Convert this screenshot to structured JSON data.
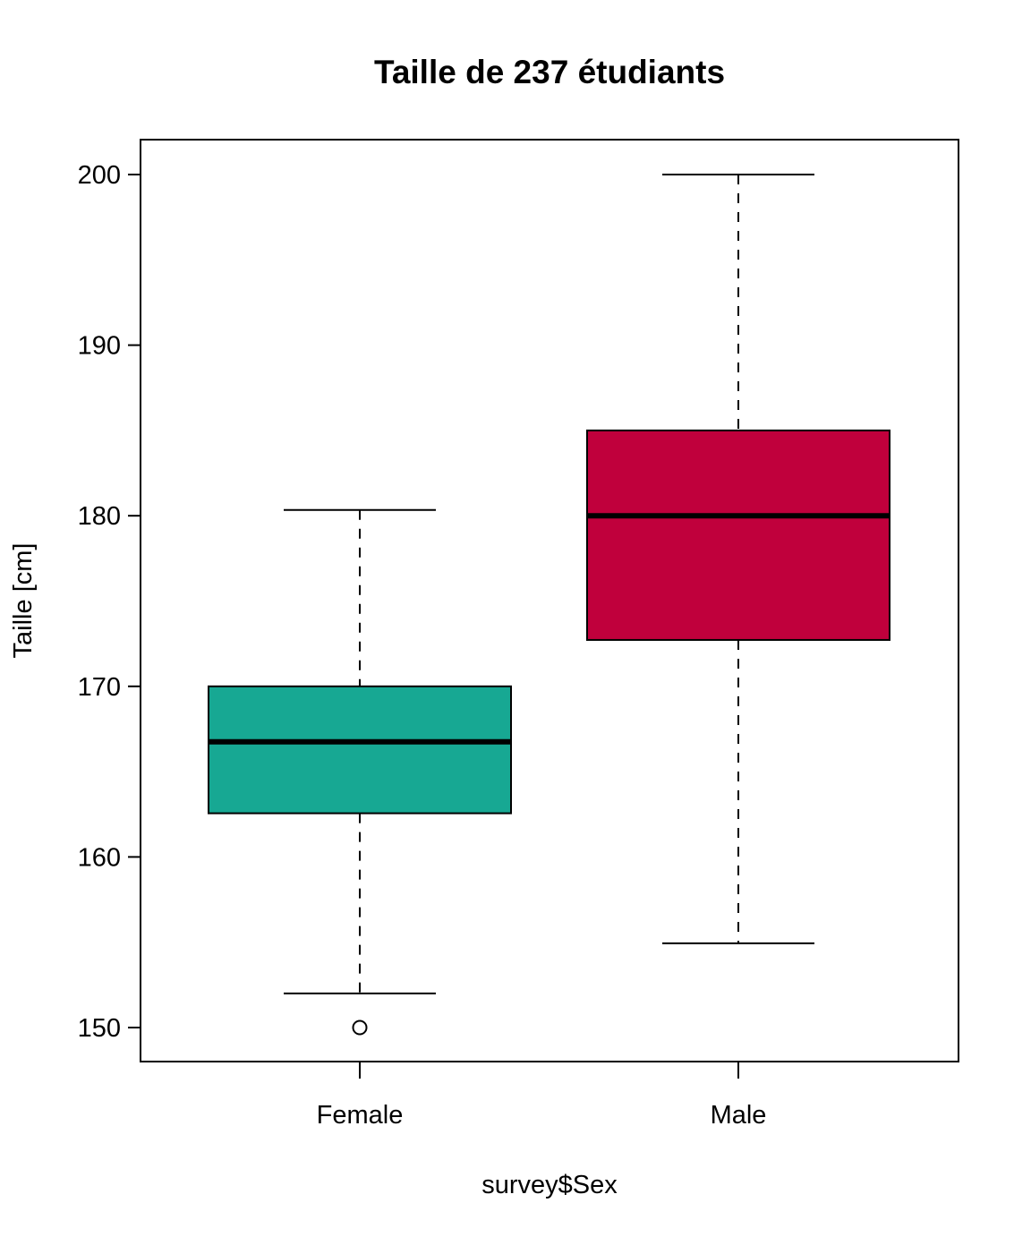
{
  "chart_data": {
    "type": "box",
    "title": "Taille de 237 étudiants",
    "xlabel": "survey$Sex",
    "ylabel": "Taille [cm]",
    "categories": [
      "Female",
      "Male"
    ],
    "ylim": [
      148,
      202
    ],
    "yticks": [
      150,
      160,
      170,
      180,
      190,
      200
    ],
    "grid": false,
    "boxes": [
      {
        "category": "Female",
        "whisker_low": 152,
        "q1": 162.56,
        "median": 166.75,
        "q3": 170,
        "whisker_high": 180.34,
        "outliers": [
          150
        ],
        "color": "#17A893"
      },
      {
        "category": "Male",
        "whisker_low": 154.94,
        "q1": 172.72,
        "median": 180,
        "q3": 185,
        "whisker_high": 200,
        "outliers": [],
        "color": "#C0003C"
      }
    ]
  }
}
